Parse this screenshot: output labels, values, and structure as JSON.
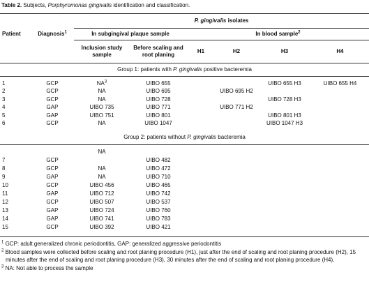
{
  "title": {
    "label": "Table 2.",
    "text": " Subjects, ",
    "species": "Porphyromonas gingivalis",
    "rest": " identification and classification."
  },
  "header": {
    "isolates": {
      "species": "P. gingivalis",
      "rest": " isolates"
    },
    "patient": "Patient",
    "diagnosis": {
      "text": "Diagnosis",
      "note": "1"
    },
    "plaque": "In subgingival plaque sample",
    "blood": {
      "text": "In blood sample",
      "note": "2"
    },
    "inclusion": "Inclusion study sample",
    "before": "Before scaling and root planing",
    "h1": "H1",
    "h2": "H2",
    "h3": "H3",
    "h4": "H4"
  },
  "groups": [
    {
      "caption": {
        "text": "Group 1: patients with ",
        "species": "P. gingivalis",
        "rest": " positive bacteremia"
      },
      "rows": [
        [
          "1",
          "GCP",
          {
            "text": "NA",
            "note": "3"
          },
          "UIBO 655",
          null,
          null,
          "UIBO 655 H3",
          "UIBO 655 H4"
        ],
        [
          "2",
          "GCP",
          "NA",
          "UIBO 695",
          null,
          "UIBO 695 H2",
          null,
          null
        ],
        [
          "3",
          "GCP",
          "NA",
          "UIBO 728",
          null,
          null,
          "UIBO 728 H3",
          null
        ],
        [
          "4",
          "GAP",
          "UIBO 735",
          "UIBO 771",
          null,
          "UIBO 771 H2",
          null,
          null
        ],
        [
          "5",
          "GAP",
          "UIBO 751",
          "UIBO 801",
          null,
          null,
          "UIBO 801 H3",
          null
        ],
        [
          "6",
          "GCP",
          "NA",
          "UIBO 1047",
          null,
          null,
          "UIBO 1047 H3",
          null
        ]
      ]
    },
    {
      "caption": {
        "text": "Group 2: patients without ",
        "species": "P. gingivalis",
        "rest": " bacteremia"
      },
      "rows": [
        [
          null,
          null,
          "NA",
          null,
          null,
          null,
          null,
          null
        ],
        [
          "7",
          "GCP",
          null,
          "UIBO 482",
          null,
          null,
          null,
          null
        ],
        [
          "8",
          "GCP",
          "NA",
          "UIBO 472",
          null,
          null,
          null,
          null
        ],
        [
          "9",
          "GAP",
          "NA",
          "UIBO 710",
          null,
          null,
          null,
          null
        ],
        [
          "10",
          "GCP",
          "UIBO 456",
          "UIBO 465",
          null,
          null,
          null,
          null
        ],
        [
          "11",
          "GAP",
          "UIBO 712",
          "UIBO 742",
          null,
          null,
          null,
          null
        ],
        [
          "12",
          "GCP",
          "UIBO 507",
          "UIBO 537",
          null,
          null,
          null,
          null
        ],
        [
          "13",
          "GAP",
          "UIBO 724",
          "UIBO 760",
          null,
          null,
          null,
          null
        ],
        [
          "14",
          "GAP",
          "UIBO 741",
          "UIBO 783",
          null,
          null,
          null,
          null
        ],
        [
          "15",
          "GCP",
          "UIBO 392",
          "UIBO 421",
          null,
          null,
          null,
          null
        ]
      ]
    }
  ],
  "footnotes": [
    {
      "mark": "1",
      "text": "GCP: adult generalized chronic periodontitis, GAP: generalized aggressive periodontitis"
    },
    {
      "mark": "2",
      "text": "Blood samples were collected before scaling and root planing procedure (H1), just after the end of scaling and root planing procedure (H2), 15 minutes after the end of scaling and root planing procedure (H3), 30 minutes after the end of scaling and root planing procedure (H4)."
    },
    {
      "mark": "3",
      "text": "NA: Not able to process the sample"
    }
  ]
}
